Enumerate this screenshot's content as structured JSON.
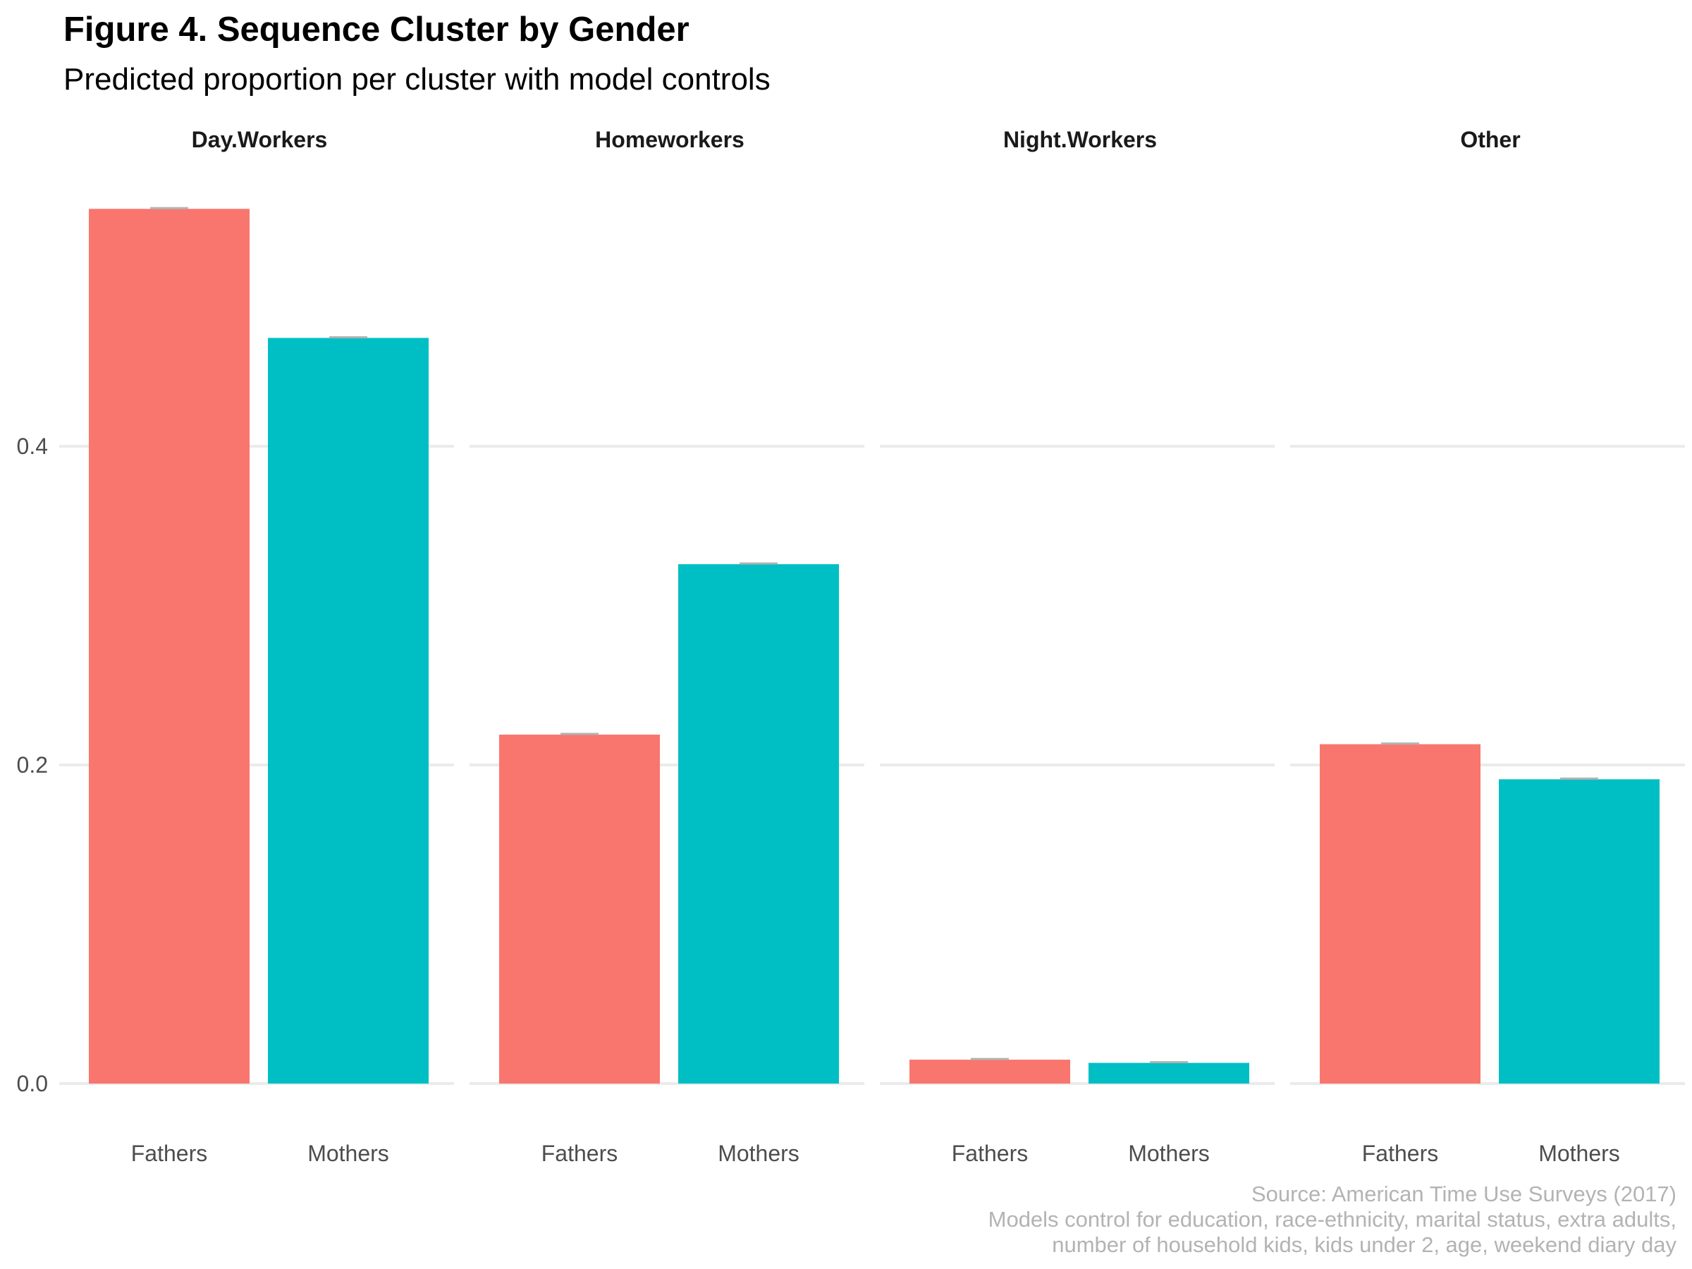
{
  "chart_data": {
    "type": "bar",
    "title": "Figure 4. Sequence Cluster by Gender",
    "subtitle": "Predicted proportion per cluster with model controls",
    "xlabel": "",
    "ylabel": "",
    "ylim": [
      0,
      0.55
    ],
    "yticks": [
      0.0,
      0.2,
      0.4
    ],
    "ytick_labels": [
      "0.0",
      "0.2",
      "0.4"
    ],
    "categories": [
      "Fathers",
      "Mothers"
    ],
    "facets": [
      {
        "name": "Day.Workers",
        "values": [
          0.549,
          0.468
        ]
      },
      {
        "name": "Homeworkers",
        "values": [
          0.219,
          0.326
        ]
      },
      {
        "name": "Night.Workers",
        "values": [
          0.015,
          0.013
        ]
      },
      {
        "name": "Other",
        "values": [
          0.213,
          0.191
        ]
      }
    ],
    "colors": {
      "Fathers": "#F8766D",
      "Mothers": "#00BFC4",
      "error_bar": "#b3b3b3",
      "grid": "#ebebeb"
    },
    "grid": true,
    "legend": "none",
    "caption": [
      "Source: American Time Use Surveys (2017)",
      "Models control for education, race-ethnicity, marital status, extra adults,",
      "number of household kids, kids under 2, age, weekend diary day"
    ]
  }
}
